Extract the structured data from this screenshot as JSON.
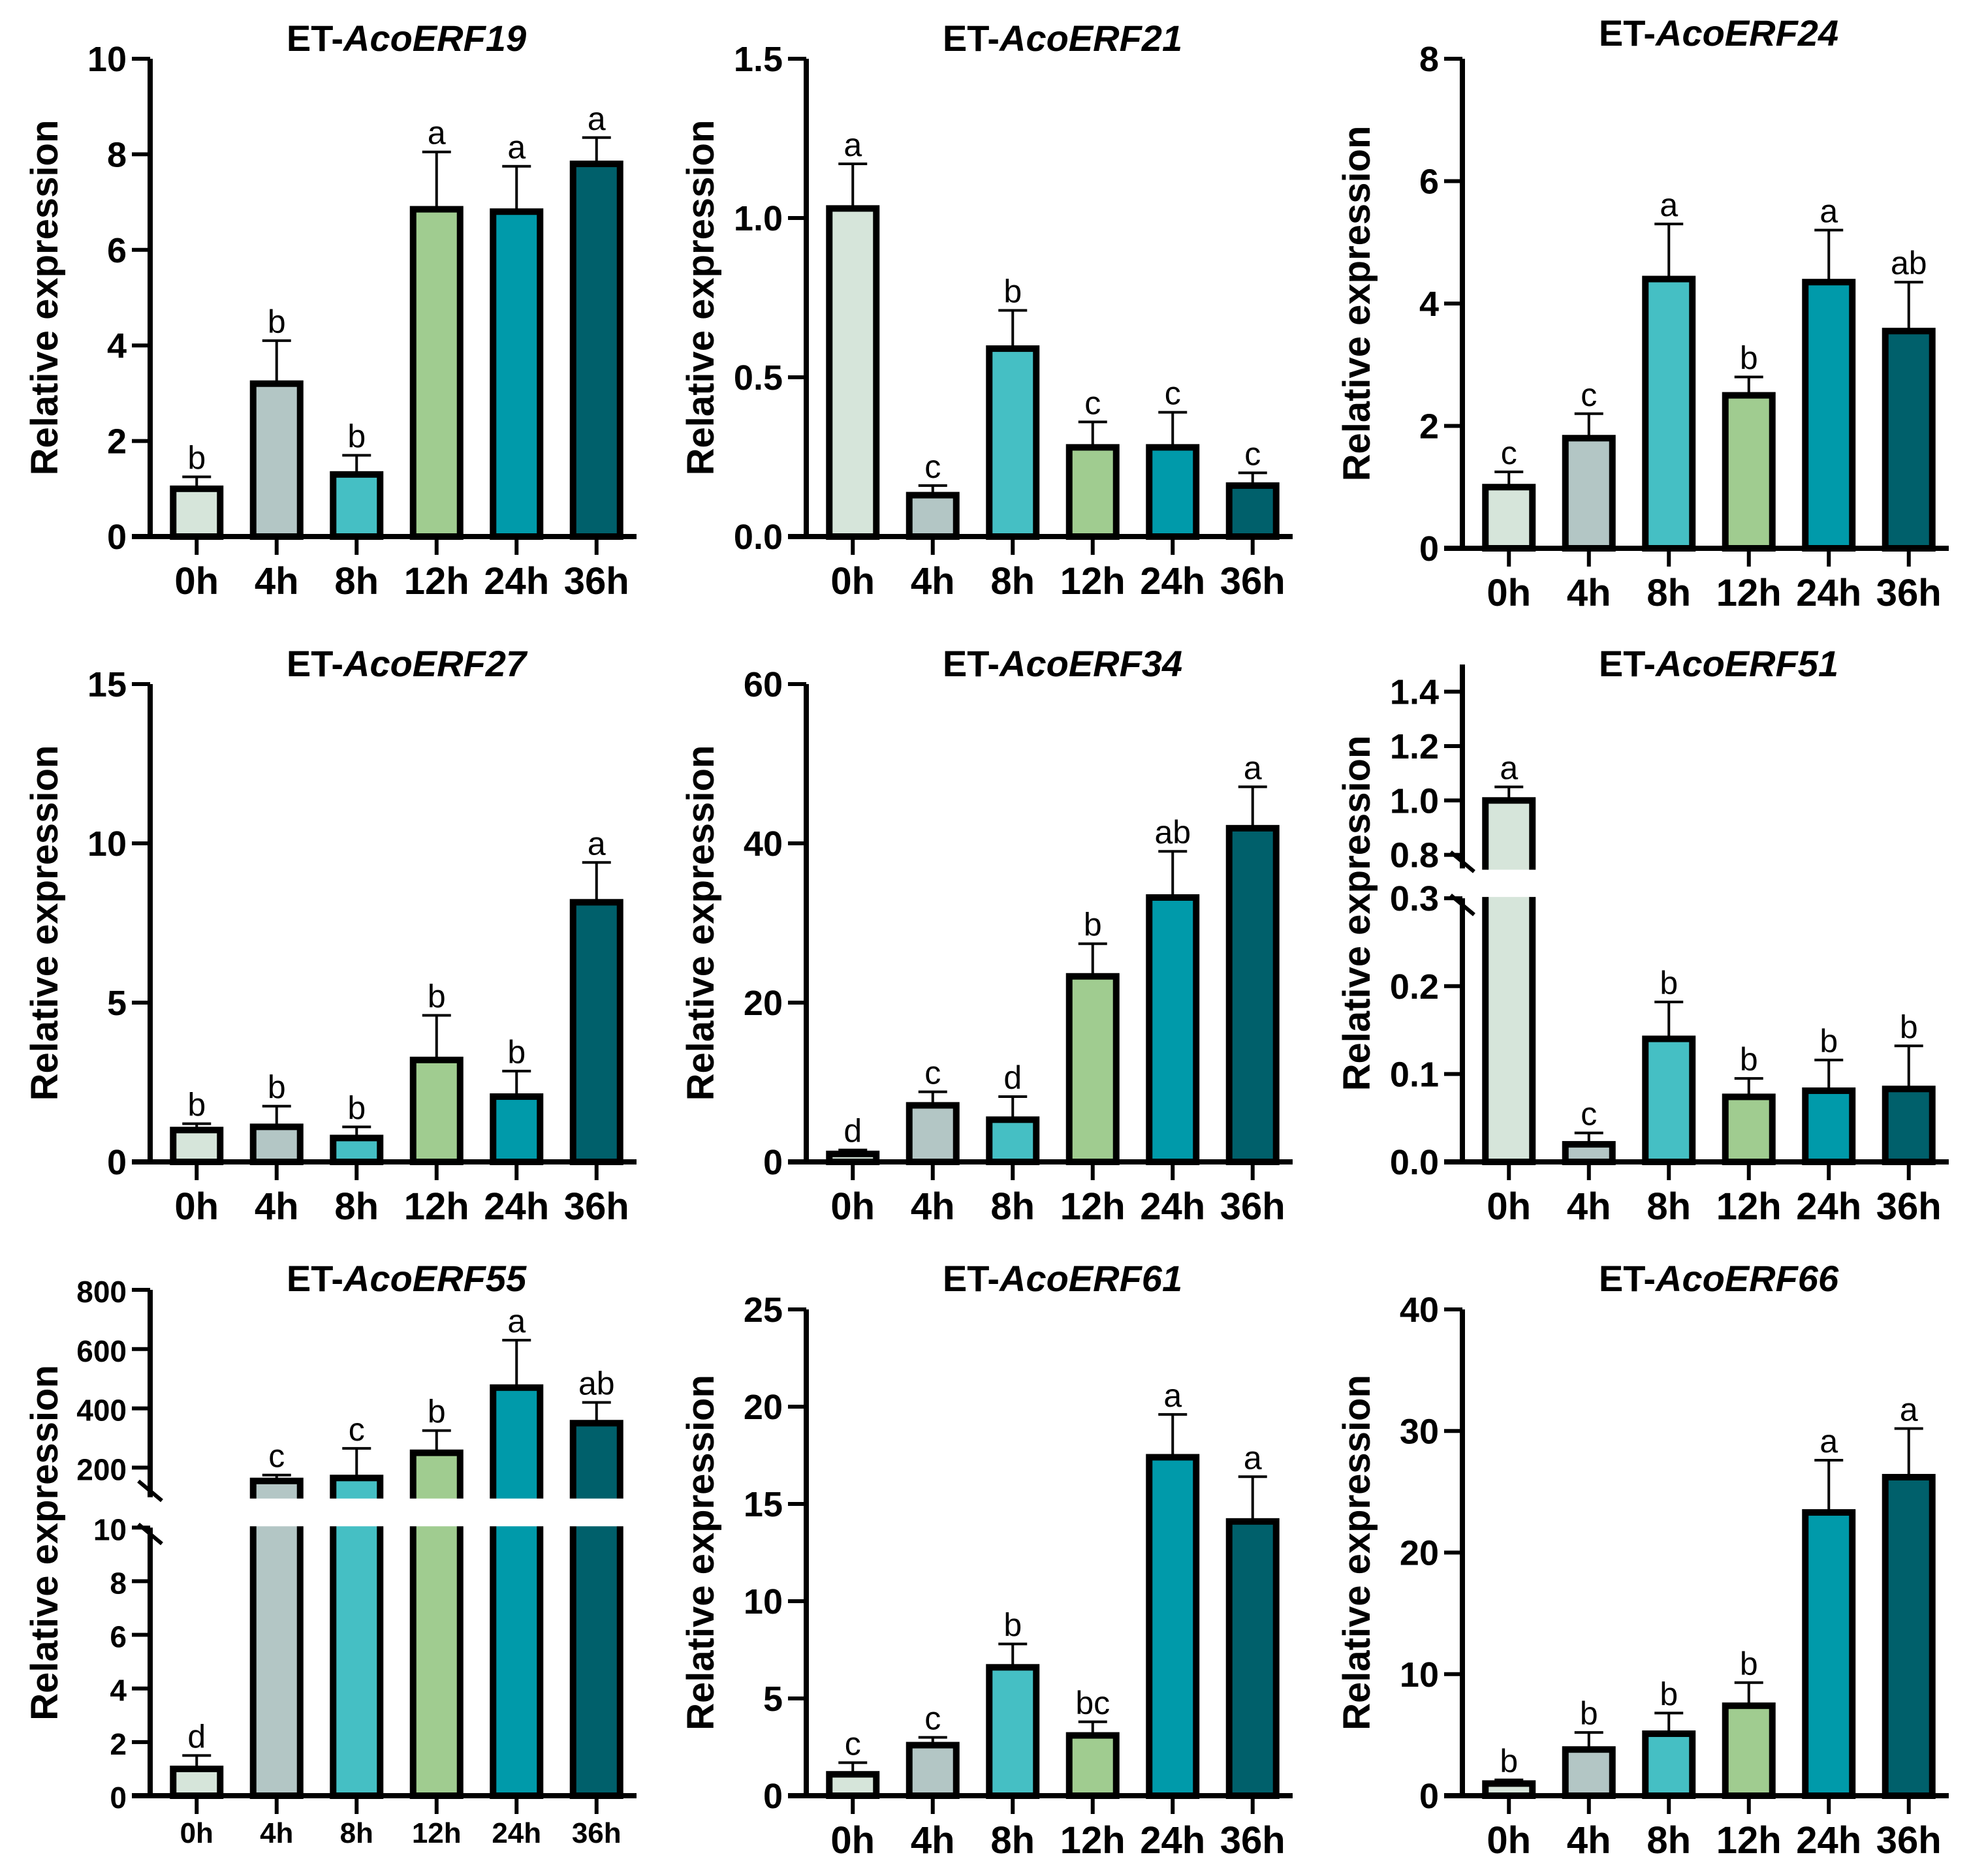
{
  "colors": {
    "0h": "#d6e5da",
    "4h": "#b3c6c5",
    "8h": "#45bfc4",
    "12h": "#a0cc90",
    "24h": "#009aaa",
    "36h": "#00606b",
    "outline": "#000000"
  },
  "chart_data": [
    {
      "type": "bar",
      "title_prefix": "ET-",
      "title_gene": "AcoERF19",
      "ylabel": "Relative expression",
      "categories": [
        "0h",
        "4h",
        "8h",
        "12h",
        "24h",
        "36h"
      ],
      "values": [
        1.0,
        3.2,
        1.3,
        6.85,
        6.8,
        7.8
      ],
      "error_upper": [
        1.25,
        4.1,
        1.7,
        8.05,
        7.75,
        8.35
      ],
      "letters": [
        "b",
        "b",
        "b",
        "a",
        "a",
        "a"
      ],
      "ylim": [
        0,
        10
      ],
      "yticks": [
        "0",
        "2",
        "4",
        "6",
        "8",
        "10"
      ]
    },
    {
      "type": "bar",
      "title_prefix": "ET-",
      "title_gene": "AcoERF21",
      "ylabel": "Relative expression",
      "categories": [
        "0h",
        "4h",
        "8h",
        "12h",
        "24h",
        "36h"
      ],
      "values": [
        1.03,
        0.13,
        0.59,
        0.28,
        0.28,
        0.16
      ],
      "error_upper": [
        1.17,
        0.16,
        0.71,
        0.36,
        0.39,
        0.2
      ],
      "letters": [
        "a",
        "c",
        "b",
        "c",
        "c",
        "c"
      ],
      "ylim": [
        0,
        1.5
      ],
      "yticks": [
        "0.0",
        "0.5",
        "1.0",
        "1.5"
      ]
    },
    {
      "type": "bar",
      "title_prefix": "ET-",
      "title_gene": "AcoERF24",
      "ylabel": "Relative expression",
      "categories": [
        "0h",
        "4h",
        "8h",
        "12h",
        "24h",
        "36h"
      ],
      "values": [
        1.0,
        1.8,
        4.4,
        2.5,
        4.35,
        3.55
      ],
      "error_upper": [
        1.25,
        2.2,
        5.3,
        2.8,
        5.2,
        4.35
      ],
      "letters": [
        "c",
        "c",
        "a",
        "b",
        "a",
        "ab"
      ],
      "ylim": [
        0,
        8
      ],
      "yticks": [
        "0",
        "2",
        "4",
        "6",
        "8"
      ]
    },
    {
      "type": "bar",
      "title_prefix": "ET-",
      "title_gene": "AcoERF27",
      "ylabel": "Relative expression",
      "categories": [
        "0h",
        "4h",
        "8h",
        "12h",
        "24h",
        "36h"
      ],
      "values": [
        1.0,
        1.1,
        0.75,
        3.2,
        2.05,
        8.15
      ],
      "error_upper": [
        1.2,
        1.75,
        1.1,
        4.6,
        2.85,
        9.4
      ],
      "letters": [
        "b",
        "b",
        "b",
        "b",
        "b",
        "a"
      ],
      "ylim": [
        0,
        15
      ],
      "yticks": [
        "0",
        "5",
        "10",
        "15"
      ]
    },
    {
      "type": "bar",
      "title_prefix": "ET-",
      "title_gene": "AcoERF34",
      "ylabel": "Relative expression",
      "categories": [
        "0h",
        "4h",
        "8h",
        "12h",
        "24h",
        "36h"
      ],
      "values": [
        1.0,
        7.1,
        5.3,
        23.3,
        33.2,
        41.9
      ],
      "error_upper": [
        1.5,
        8.8,
        8.2,
        27.4,
        39,
        47.1
      ],
      "letters": [
        "d",
        "c",
        "d",
        "b",
        "ab",
        "a"
      ],
      "ylim": [
        0,
        60
      ],
      "yticks": [
        "0",
        "20",
        "40",
        "60"
      ]
    },
    {
      "type": "bar",
      "title_prefix": "ET-",
      "title_gene": "AcoERF51",
      "ylabel": "Relative expression",
      "categories": [
        "0h",
        "4h",
        "8h",
        "12h",
        "24h",
        "36h"
      ],
      "values": [
        1.0,
        0.02,
        0.14,
        0.074,
        0.081,
        0.083
      ],
      "error_upper": [
        1.05,
        0.033,
        0.182,
        0.095,
        0.116,
        0.132
      ],
      "letters": [
        "a",
        "c",
        "b",
        "b",
        "b",
        "b"
      ],
      "broken_axis": true,
      "ylim_lower": [
        0,
        0.3
      ],
      "yticks_lower": [
        "0.0",
        "0.1",
        "0.2",
        "0.3"
      ],
      "ylim_upper": [
        0.75,
        1.5
      ],
      "yticks_upper": [
        "0.8",
        "1.0",
        "1.2",
        "1.4"
      ]
    },
    {
      "type": "bar",
      "title_prefix": "ET-",
      "title_gene": "AcoERF55",
      "ylabel": "Relative expression",
      "categories": [
        "0h",
        "4h",
        "8h",
        "12h",
        "24h",
        "36h"
      ],
      "values": [
        1.0,
        155,
        165,
        250,
        470,
        350
      ],
      "error_upper": [
        1.5,
        175,
        265,
        325,
        630,
        420
      ],
      "letters": [
        "d",
        "c",
        "c",
        "b",
        "a",
        "ab"
      ],
      "broken_axis": true,
      "ylim_lower": [
        0,
        10
      ],
      "yticks_lower": [
        "0",
        "2",
        "4",
        "6",
        "8",
        "10"
      ],
      "ylim_upper": [
        100,
        800
      ],
      "yticks_upper": [
        "200",
        "400",
        "600",
        "800"
      ]
    },
    {
      "type": "bar",
      "title_prefix": "ET-",
      "title_gene": "AcoERF61",
      "ylabel": "Relative expression",
      "categories": [
        "0h",
        "4h",
        "8h",
        "12h",
        "24h",
        "36h"
      ],
      "values": [
        1.1,
        2.6,
        6.6,
        3.1,
        17.4,
        14.1
      ],
      "error_upper": [
        1.7,
        3.0,
        7.8,
        3.8,
        19.6,
        16.4
      ],
      "letters": [
        "c",
        "c",
        "b",
        "bc",
        "a",
        "a"
      ],
      "ylim": [
        0,
        25
      ],
      "yticks": [
        "0",
        "5",
        "10",
        "15",
        "20",
        "25"
      ]
    },
    {
      "type": "bar",
      "title_prefix": "ET-",
      "title_gene": "AcoERF66",
      "ylabel": "Relative expression",
      "categories": [
        "0h",
        "4h",
        "8h",
        "12h",
        "24h",
        "36h"
      ],
      "values": [
        1.0,
        3.8,
        5.1,
        7.4,
        23.3,
        26.2
      ],
      "error_upper": [
        1.3,
        5.2,
        6.8,
        9.3,
        27.6,
        30.2
      ],
      "letters": [
        "b",
        "b",
        "b",
        "b",
        "a",
        "a"
      ],
      "ylim": [
        0,
        40
      ],
      "yticks": [
        "0",
        "10",
        "20",
        "30",
        "40"
      ]
    }
  ]
}
